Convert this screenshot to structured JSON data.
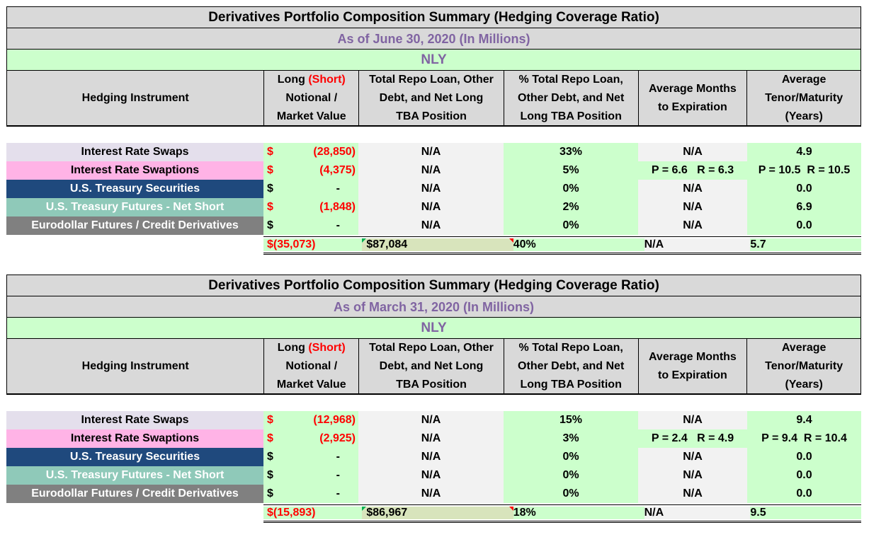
{
  "tables": [
    {
      "title": "Derivatives Portfolio Composition Summary (Hedging Coverage Ratio)",
      "subtitle": "As of June 30, 2020 (In Millions)",
      "ticker": "NLY",
      "headers": {
        "instrument": "Hedging Instrument",
        "long": "Long",
        "short": "(Short)",
        "notional": "Notional /",
        "market": "Market Value",
        "total_repo": [
          "Total Repo Loan, Other",
          "Debt, and Net Long",
          "TBA Position"
        ],
        "pct_repo": [
          "% Total Repo Loan,",
          "Other Debt, and Net",
          "Long TBA Position"
        ],
        "avg_months": [
          "Average Months",
          "to Expiration"
        ],
        "avg_tenor": [
          "Average",
          "Tenor/Maturity",
          "(Years)"
        ]
      },
      "rows": [
        {
          "name": "Interest Rate Swaps",
          "currency": "$",
          "value": "(28,850)",
          "repo": "N/A",
          "pct": "33%",
          "months": "N/A",
          "tenor": "4.9"
        },
        {
          "name": "Interest Rate Swaptions",
          "currency": "$",
          "value": "(4,375)",
          "repo": "N/A",
          "pct": "5%",
          "months": "P = 6.6   R = 6.3",
          "tenor": "P = 10.5  R = 10.5"
        },
        {
          "name": "U.S. Treasury Securities",
          "currency": "$",
          "value": "-",
          "repo": "N/A",
          "pct": "0%",
          "months": "N/A",
          "tenor": "0.0"
        },
        {
          "name": "U.S. Treasury Futures - Net Short",
          "currency": "$",
          "value": "(1,848)",
          "repo": "N/A",
          "pct": "2%",
          "months": "N/A",
          "tenor": "6.9"
        },
        {
          "name": "Eurodollar Futures / Credit Derivatives",
          "currency": "$",
          "value": "-",
          "repo": "N/A",
          "pct": "0%",
          "months": "N/A",
          "tenor": "0.0"
        }
      ],
      "total": {
        "currency": "$",
        "value": "(35,073)",
        "repo_currency": "$",
        "repo": "87,084",
        "pct": "40%",
        "months": "N/A",
        "tenor": "5.7"
      }
    },
    {
      "title": "Derivatives Portfolio Composition Summary (Hedging Coverage Ratio)",
      "subtitle": "As of March 31, 2020 (In Millions)",
      "ticker": "NLY",
      "headers": {
        "instrument": "Hedging Instrument",
        "long": "Long",
        "short": "(Short)",
        "notional": "Notional /",
        "market": "Market Value",
        "total_repo": [
          "Total Repo Loan, Other",
          "Debt, and Net Long",
          "TBA Position"
        ],
        "pct_repo": [
          "% Total Repo Loan,",
          "Other Debt, and Net",
          "Long TBA Position"
        ],
        "avg_months": [
          "Average Months",
          "to Expiration"
        ],
        "avg_tenor": [
          "Average",
          "Tenor/Maturity",
          "(Years)"
        ]
      },
      "rows": [
        {
          "name": "Interest Rate Swaps",
          "currency": "$",
          "value": "(12,968)",
          "repo": "N/A",
          "pct": "15%",
          "months": "N/A",
          "tenor": "9.4"
        },
        {
          "name": "Interest Rate Swaptions",
          "currency": "$",
          "value": "(2,925)",
          "repo": "N/A",
          "pct": "3%",
          "months": "P = 2.4   R = 4.9",
          "tenor": "P = 9.4  R = 10.4"
        },
        {
          "name": "U.S. Treasury Securities",
          "currency": "$",
          "value": "-",
          "repo": "N/A",
          "pct": "0%",
          "months": "N/A",
          "tenor": "0.0"
        },
        {
          "name": "U.S. Treasury Futures - Net Short",
          "currency": "$",
          "value": "-",
          "repo": "N/A",
          "pct": "0%",
          "months": "N/A",
          "tenor": "0.0"
        },
        {
          "name": "Eurodollar Futures / Credit Derivatives",
          "currency": "$",
          "value": "-",
          "repo": "N/A",
          "pct": "0%",
          "months": "N/A",
          "tenor": "0.0"
        }
      ],
      "total": {
        "currency": "$",
        "value": "(15,893)",
        "repo_currency": "$",
        "repo": "86,967",
        "pct": "18%",
        "months": "N/A",
        "tenor": "9.5"
      }
    }
  ],
  "colors": {
    "header_gray": "#d9d9d9",
    "green": "#ccffcc",
    "purple_text": "#8064a2",
    "negative_red": "#ff0000",
    "swaps": "#e4dfec",
    "swaptions": "#ffb3e6",
    "treasury": "#1f497d",
    "futures": "#8fc9b9",
    "eurodollar": "#808080"
  }
}
